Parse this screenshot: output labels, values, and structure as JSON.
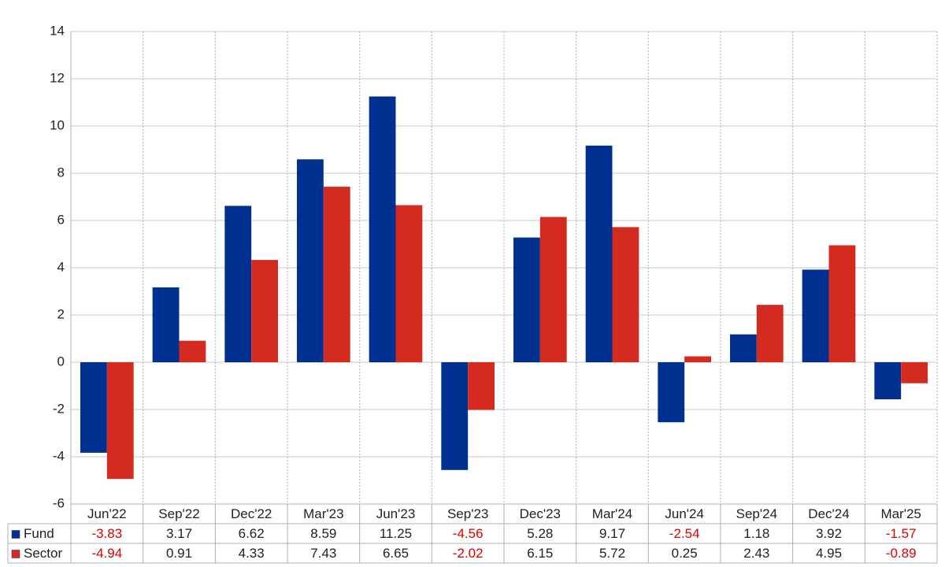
{
  "chart_data": {
    "type": "bar",
    "categories": [
      "Jun'22",
      "Sep'22",
      "Dec'22",
      "Mar'23",
      "Jun'23",
      "Sep'23",
      "Dec'23",
      "Mar'24",
      "Jun'24",
      "Sep'24",
      "Dec'24",
      "Mar'25"
    ],
    "series": [
      {
        "name": "Fund",
        "color": "#003090",
        "values": [
          -3.83,
          3.17,
          6.62,
          8.59,
          11.25,
          -4.56,
          5.28,
          9.17,
          -2.54,
          1.18,
          3.92,
          -1.57
        ]
      },
      {
        "name": "Sector",
        "color": "#d42a1f",
        "values": [
          -4.94,
          0.91,
          4.33,
          7.43,
          6.65,
          -2.02,
          6.15,
          5.72,
          0.25,
          2.43,
          4.95,
          -0.89
        ]
      }
    ],
    "ylim": [
      -6,
      14
    ],
    "yticks": [
      -6,
      -4,
      -2,
      0,
      2,
      4,
      6,
      8,
      10,
      12,
      14
    ],
    "grid": true,
    "data_table": true,
    "negative_color": "#e00000"
  }
}
